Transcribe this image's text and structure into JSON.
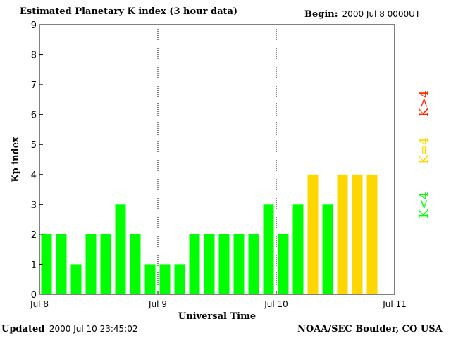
{
  "header": {
    "title": "Estimated Planetary K index (3 hour data)",
    "begin_label": "Begin:",
    "begin_value": "2000 Jul 8 0000UT"
  },
  "footer": {
    "updated_label": "Updated",
    "updated_value": "2000 Jul 10 23:45:02",
    "credit": "NOAA/SEC Boulder, CO USA"
  },
  "colors": {
    "below_4": "#00ff00",
    "equal_4": "#ffd700",
    "above_4": "#ff2a00",
    "axis": "#000000"
  },
  "legend": [
    {
      "label": "K<4",
      "color": "#00ff00"
    },
    {
      "label": "K=4",
      "color": "#ffd700"
    },
    {
      "label": "K>4",
      "color": "#ff2a00"
    }
  ],
  "chart_data": {
    "type": "bar",
    "title": "Estimated Planetary K index (3 hour data)",
    "xlabel": "Universal Time",
    "ylabel": "Kp index",
    "ylim": [
      0,
      9
    ],
    "yticks": [
      "0",
      "1",
      "2",
      "3",
      "4",
      "5",
      "6",
      "7",
      "8",
      "9"
    ],
    "xticks": [
      "Jul 8",
      "Jul 9",
      "Jul 10",
      "Jul 11"
    ],
    "day_separators": "dotted",
    "legend_position": "right (vertical)",
    "categories": [
      "Jul 8 00-03",
      "Jul 8 03-06",
      "Jul 8 06-09",
      "Jul 8 09-12",
      "Jul 8 12-15",
      "Jul 8 15-18",
      "Jul 8 18-21",
      "Jul 8 21-24",
      "Jul 9 00-03",
      "Jul 9 03-06",
      "Jul 9 06-09",
      "Jul 9 09-12",
      "Jul 9 12-15",
      "Jul 9 15-18",
      "Jul 9 18-21",
      "Jul 9 21-24",
      "Jul 10 00-03",
      "Jul 10 03-06",
      "Jul 10 06-09",
      "Jul 10 09-12",
      "Jul 10 12-15",
      "Jul 10 15-18",
      "Jul 10 18-21",
      "Jul 10 21-24"
    ],
    "values": [
      2,
      2,
      1,
      2,
      2,
      3,
      2,
      1,
      1,
      1,
      2,
      2,
      2,
      2,
      2,
      3,
      2,
      3,
      4,
      3,
      4,
      4,
      4,
      null
    ]
  }
}
